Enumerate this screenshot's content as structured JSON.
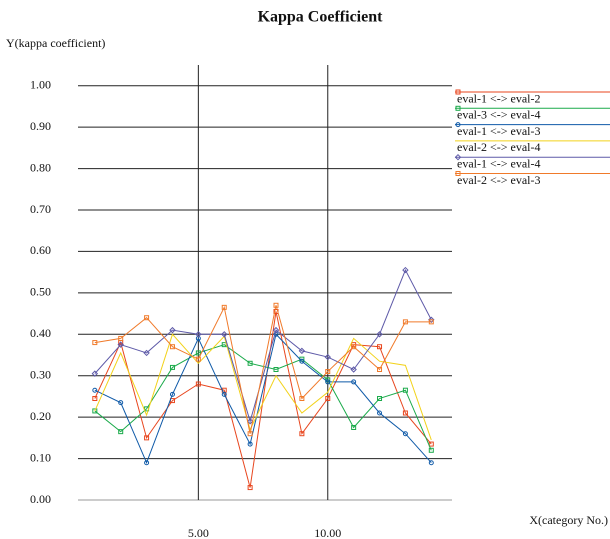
{
  "chart_data": {
    "type": "line",
    "title": "Kappa Coefficient",
    "y_label": "Y(kappa coefficient)",
    "x_label": "X(category No.)",
    "x": [
      1,
      2,
      3,
      4,
      5,
      6,
      7,
      8,
      9,
      10,
      11,
      12,
      13,
      14
    ],
    "xlim": [
      0.35,
      14.8
    ],
    "xticks": [
      {
        "value": 5,
        "label": "5.00"
      },
      {
        "value": 10,
        "label": "10.00"
      }
    ],
    "ylim": [
      0,
      1.05
    ],
    "yticks": [
      {
        "value": 0,
        "label": "0.00"
      },
      {
        "value": 0.1,
        "label": "0.10"
      },
      {
        "value": 0.2,
        "label": "0.20"
      },
      {
        "value": 0.3,
        "label": "0.30"
      },
      {
        "value": 0.4,
        "label": "0.40"
      },
      {
        "value": 0.5,
        "label": "0.50"
      },
      {
        "value": 0.6,
        "label": "0.60"
      },
      {
        "value": 0.7,
        "label": "0.70"
      },
      {
        "value": 0.8,
        "label": "0.80"
      },
      {
        "value": 0.9,
        "label": "0.90"
      },
      {
        "value": 1,
        "label": "1.00"
      }
    ],
    "grid": true,
    "legend": "right",
    "series": [
      {
        "name": "eval-1 <-> eval-2",
        "color": "#e8461e",
        "marker": "square",
        "values": [
          0.245,
          0.38,
          0.15,
          0.24,
          0.28,
          0.265,
          0.03,
          0.455,
          0.16,
          0.245,
          0.375,
          0.37,
          0.21,
          0.135
        ]
      },
      {
        "name": "eval-3 <-> eval-4",
        "color": "#1aaa4a",
        "marker": "square",
        "values": [
          0.215,
          0.165,
          0.22,
          0.32,
          0.355,
          0.375,
          0.33,
          0.315,
          0.34,
          0.29,
          0.175,
          0.245,
          0.265,
          0.12
        ]
      },
      {
        "name": "eval-1 <-> eval-3",
        "color": "#0f5aa8",
        "marker": "circle",
        "values": [
          0.265,
          0.235,
          0.09,
          0.255,
          0.39,
          0.255,
          0.135,
          0.4,
          0.335,
          0.285,
          0.285,
          0.21,
          0.16,
          0.09
        ]
      },
      {
        "name": "eval-2 <-> eval-4",
        "color": "#f2d21a",
        "marker": "none",
        "values": [
          0.215,
          0.355,
          0.205,
          0.4,
          0.33,
          0.395,
          0.17,
          0.3,
          0.21,
          0.26,
          0.39,
          0.335,
          0.325,
          0.145
        ]
      },
      {
        "name": "eval-1 <-> eval-4",
        "color": "#5e5aa8",
        "marker": "diamond",
        "values": [
          0.305,
          0.375,
          0.355,
          0.41,
          0.4,
          0.4,
          0.19,
          0.41,
          0.36,
          0.345,
          0.315,
          0.4,
          0.555,
          0.435
        ]
      },
      {
        "name": "eval-2 <-> eval-3",
        "color": "#f07a2a",
        "marker": "square",
        "values": [
          0.38,
          0.39,
          0.44,
          0.37,
          0.34,
          0.465,
          0.16,
          0.47,
          0.245,
          0.31,
          0.37,
          0.315,
          0.43,
          0.43
        ]
      }
    ]
  }
}
